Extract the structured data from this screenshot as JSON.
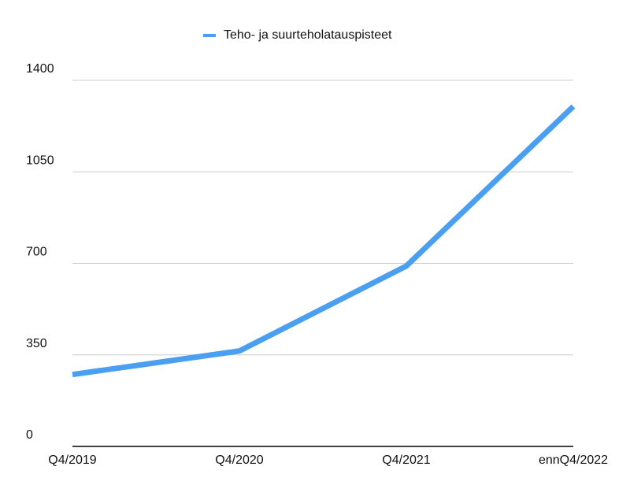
{
  "chart_data": {
    "type": "line",
    "categories": [
      "Q4/2019",
      "Q4/2020",
      "Q4/2021",
      "ennQ4/2022"
    ],
    "series": [
      {
        "name": "Teho- ja suurteholatauspisteet",
        "color": "#4a9ff0",
        "values": [
          275,
          365,
          690,
          1300
        ]
      }
    ],
    "ylim": [
      0,
      1400
    ],
    "yticks": [
      0,
      350,
      700,
      1050,
      1400
    ],
    "grid": true,
    "legend": "top"
  }
}
